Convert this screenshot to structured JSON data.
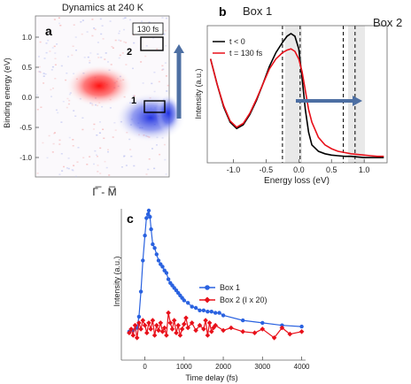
{
  "figure": {
    "panel_a": {
      "label": "a",
      "title": "Dynamics at 240 K",
      "ylabel": "Binding energy (eV)",
      "xlabel": "Γ̅ - M̅",
      "y_ticks": [
        "1.0",
        "0.5",
        "0.0",
        "-0.5",
        "-1.0"
      ],
      "box_labels": [
        "1",
        "2"
      ],
      "delay_label": "130 fs",
      "colors": {
        "positive": "#ff2020",
        "negative": "#2a3cd8",
        "box": "#000000",
        "arrow": "#4d6fa3"
      }
    },
    "panel_b": {
      "label": "b",
      "box1_label": "Box 1",
      "box2_label": "Box 2",
      "ylabel": "Intensity (a.u.)",
      "xlabel": "Energy loss (eV)",
      "x_ticks": [
        "-1.0",
        "-0.5",
        "0.0",
        "0.5",
        "1.0"
      ],
      "legend": [
        "t < 0",
        "t = 130 fs"
      ],
      "colors": {
        "t_neg": "#000000",
        "t_130": "#e8101a",
        "arrow": "#4d6fa3",
        "box_shade": "#e9e9e9"
      }
    },
    "panel_c": {
      "label": "c",
      "ylabel": "Intensity (a.u.)",
      "xlabel": "Time delay (fs)",
      "x_ticks": [
        "0",
        "1000",
        "2000",
        "3000",
        "4000"
      ],
      "legend": [
        "Box 1",
        "Box 2 (I x 20)"
      ],
      "colors": {
        "box1": "#2a62e0",
        "box2": "#e8101a"
      }
    }
  },
  "chart_data": [
    {
      "type": "line",
      "panel": "b",
      "xlabel": "Energy loss (eV)",
      "ylabel": "Intensity (a.u.)",
      "xlim": [
        -1.4,
        1.35
      ],
      "series": [
        {
          "name": "t < 0",
          "x": [
            -1.35,
            -1.25,
            -1.15,
            -1.05,
            -0.95,
            -0.85,
            -0.75,
            -0.65,
            -0.55,
            -0.45,
            -0.35,
            -0.25,
            -0.18,
            -0.12,
            -0.06,
            0.0,
            0.05,
            0.1,
            0.15,
            0.2,
            0.3,
            0.4,
            0.5,
            0.6,
            0.7,
            0.8,
            0.9,
            1.0,
            1.1,
            1.2,
            1.3
          ],
          "y": [
            0.8,
            0.6,
            0.42,
            0.3,
            0.25,
            0.28,
            0.36,
            0.47,
            0.6,
            0.74,
            0.85,
            0.93,
            0.98,
            1.0,
            0.98,
            0.88,
            0.65,
            0.4,
            0.22,
            0.12,
            0.07,
            0.05,
            0.04,
            0.035,
            0.03,
            0.03,
            0.025,
            0.02,
            0.02,
            0.02,
            0.02
          ]
        },
        {
          "name": "t = 130 fs",
          "x": [
            -1.35,
            -1.25,
            -1.15,
            -1.05,
            -0.95,
            -0.85,
            -0.75,
            -0.65,
            -0.55,
            -0.45,
            -0.35,
            -0.25,
            -0.18,
            -0.12,
            -0.06,
            0.0,
            0.05,
            0.1,
            0.15,
            0.2,
            0.3,
            0.4,
            0.5,
            0.6,
            0.7,
            0.8,
            0.9,
            1.0,
            1.1,
            1.2,
            1.3
          ],
          "y": [
            0.8,
            0.6,
            0.43,
            0.31,
            0.26,
            0.29,
            0.37,
            0.48,
            0.6,
            0.72,
            0.8,
            0.85,
            0.87,
            0.88,
            0.86,
            0.8,
            0.7,
            0.55,
            0.4,
            0.3,
            0.18,
            0.12,
            0.09,
            0.07,
            0.06,
            0.05,
            0.045,
            0.04,
            0.035,
            0.03,
            0.03
          ]
        }
      ],
      "markers": {
        "box1_dashed": [
          -0.25,
          0.02
        ],
        "box2_dashed": [
          0.68,
          0.86
        ]
      }
    },
    {
      "type": "line",
      "panel": "c",
      "xlabel": "Time delay (fs)",
      "ylabel": "Intensity (a.u.)",
      "xlim": [
        -600,
        4100
      ],
      "series": [
        {
          "name": "Box 1",
          "x": [
            -400,
            -300,
            -200,
            -150,
            -100,
            -50,
            0,
            40,
            80,
            100,
            130,
            160,
            200,
            250,
            300,
            350,
            400,
            450,
            500,
            550,
            600,
            650,
            700,
            750,
            800,
            850,
            900,
            950,
            1000,
            1100,
            1200,
            1300,
            1400,
            1500,
            1600,
            1700,
            1800,
            1900,
            2000,
            2500,
            3000,
            3500,
            4000
          ],
          "y": [
            0.03,
            0.04,
            0.06,
            0.15,
            0.35,
            0.6,
            0.8,
            0.94,
            0.97,
            1.0,
            0.95,
            0.85,
            0.73,
            0.7,
            0.65,
            0.6,
            0.57,
            0.55,
            0.52,
            0.5,
            0.45,
            0.42,
            0.4,
            0.38,
            0.36,
            0.34,
            0.32,
            0.3,
            0.28,
            0.26,
            0.23,
            0.22,
            0.2,
            0.2,
            0.19,
            0.19,
            0.18,
            0.18,
            0.16,
            0.12,
            0.1,
            0.08,
            0.07
          ]
        },
        {
          "name": "Box 2 (I x 20)",
          "x": [
            -400,
            -350,
            -300,
            -250,
            -200,
            -150,
            -100,
            -50,
            0,
            50,
            100,
            150,
            200,
            250,
            300,
            350,
            400,
            450,
            500,
            550,
            600,
            650,
            700,
            750,
            800,
            850,
            900,
            950,
            1000,
            1050,
            1100,
            1200,
            1300,
            1400,
            1500,
            1550,
            1600,
            1650,
            1700,
            1750,
            1800,
            2000,
            2200,
            2500,
            2800,
            3000,
            3300,
            3500,
            3700,
            4000
          ],
          "y": [
            0.02,
            0.05,
            0.0,
            0.08,
            -0.02,
            0.1,
            0.05,
            0.12,
            0.08,
            0.02,
            0.1,
            0.05,
            0.12,
            0.0,
            0.08,
            0.04,
            0.1,
            0.03,
            0.06,
            0.0,
            0.18,
            0.1,
            0.05,
            0.12,
            0.02,
            0.08,
            0.0,
            0.05,
            0.09,
            0.14,
            0.06,
            0.1,
            0.04,
            0.08,
            0.05,
            0.12,
            0.0,
            0.1,
            0.03,
            0.06,
            0.08,
            0.04,
            0.06,
            0.03,
            0.02,
            0.05,
            -0.02,
            0.06,
            0.01,
            0.03
          ]
        }
      ]
    }
  ]
}
